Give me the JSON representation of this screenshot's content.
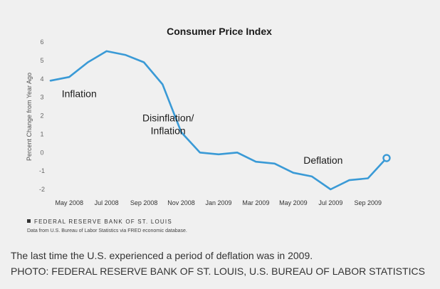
{
  "caption": {
    "text": "The last time the U.S. experienced a period of deflation was in 2009.",
    "credit": "PHOTO: FEDERAL RESERVE BANK OF ST. LOUIS, U.S. BUREAU OF LABOR STATISTICS"
  },
  "source": {
    "org": "FEDERAL RESERVE BANK OF ST. LOUIS",
    "note": "Data from U.S. Bureau of Labor Statistics via FRED economic database."
  },
  "chart_data": {
    "type": "line",
    "title": "Consumer Price Index",
    "xlabel": "",
    "ylabel": "Percent Change from Year Ago",
    "ylim": [
      -2,
      6
    ],
    "yticks": [
      6,
      5,
      4,
      3,
      2,
      1,
      0,
      -1,
      -2
    ],
    "grid": false,
    "line_color": "#3a9ad6",
    "x_tick_labels": [
      "May 2008",
      "Jul 2008",
      "Sep 2008",
      "Nov 2008",
      "Jan 2009",
      "Mar 2009",
      "May 2009",
      "Jul 2009",
      "Sep 2009"
    ],
    "x": [
      "Apr 2008",
      "May 2008",
      "Jun 2008",
      "Jul 2008",
      "Aug 2008",
      "Sep 2008",
      "Oct 2008",
      "Nov 2008",
      "Dec 2008",
      "Jan 2009",
      "Feb 2009",
      "Mar 2009",
      "Apr 2009",
      "May 2009",
      "Jun 2009",
      "Jul 2009",
      "Aug 2009",
      "Sep 2009",
      "Oct 2009"
    ],
    "values": [
      3.9,
      4.1,
      4.9,
      5.5,
      5.3,
      4.9,
      3.7,
      1.1,
      0.0,
      -0.1,
      0.0,
      -0.5,
      -0.6,
      -1.1,
      -1.3,
      -2.0,
      -1.5,
      -1.4,
      -0.3
    ],
    "annotations": [
      {
        "text": "Inflation",
        "x_index": 0.6,
        "y": 3.0
      },
      {
        "text": "Disinflation/",
        "x_index": 6.3,
        "y": 1.7
      },
      {
        "text": "Inflation",
        "x_index": 6.3,
        "y": 1.0
      },
      {
        "text": "Deflation",
        "x_index": 14.6,
        "y": -0.6
      }
    ]
  }
}
